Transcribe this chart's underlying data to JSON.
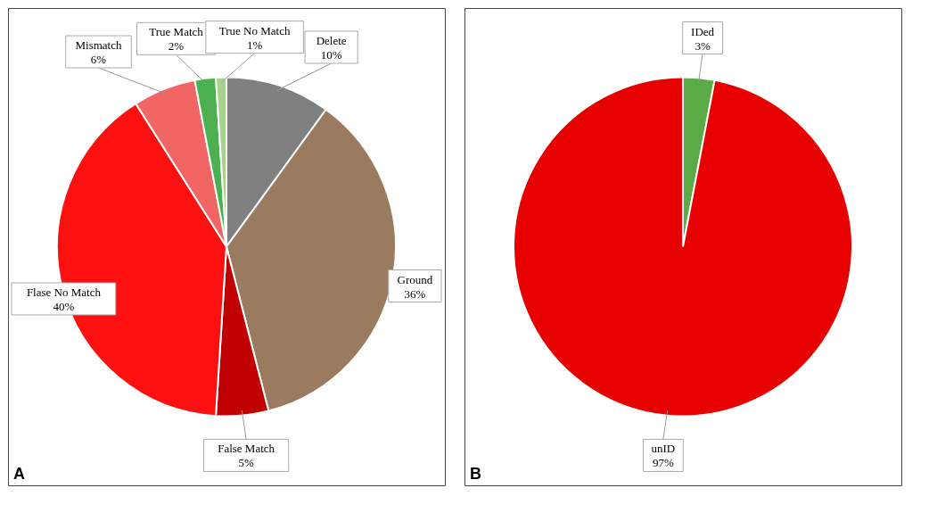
{
  "chart_data": [
    {
      "type": "pie",
      "categories": [
        "Delete",
        "Ground",
        "False Match",
        "Flase No Match",
        "Mismatch",
        "True Match",
        "True No Match"
      ],
      "values": [
        10,
        36,
        5,
        40,
        6,
        2,
        1
      ],
      "colors": [
        "#808080",
        "#9b7b5f",
        "#c00000",
        "#ff1010",
        "#f26565",
        "#4caf50",
        "#a9d18e"
      ],
      "value_labels": [
        "10%",
        "36%",
        "5%",
        "40%",
        "6%",
        "2%",
        "1%"
      ],
      "legend": false,
      "annotations": [
        "A"
      ]
    },
    {
      "type": "pie",
      "categories": [
        "IDed",
        "unID"
      ],
      "values": [
        3,
        97
      ],
      "colors": [
        "#5aaa45",
        "#e60000"
      ],
      "value_labels": [
        "3%",
        "97%"
      ],
      "legend": false,
      "annotations": [
        "B"
      ]
    }
  ]
}
